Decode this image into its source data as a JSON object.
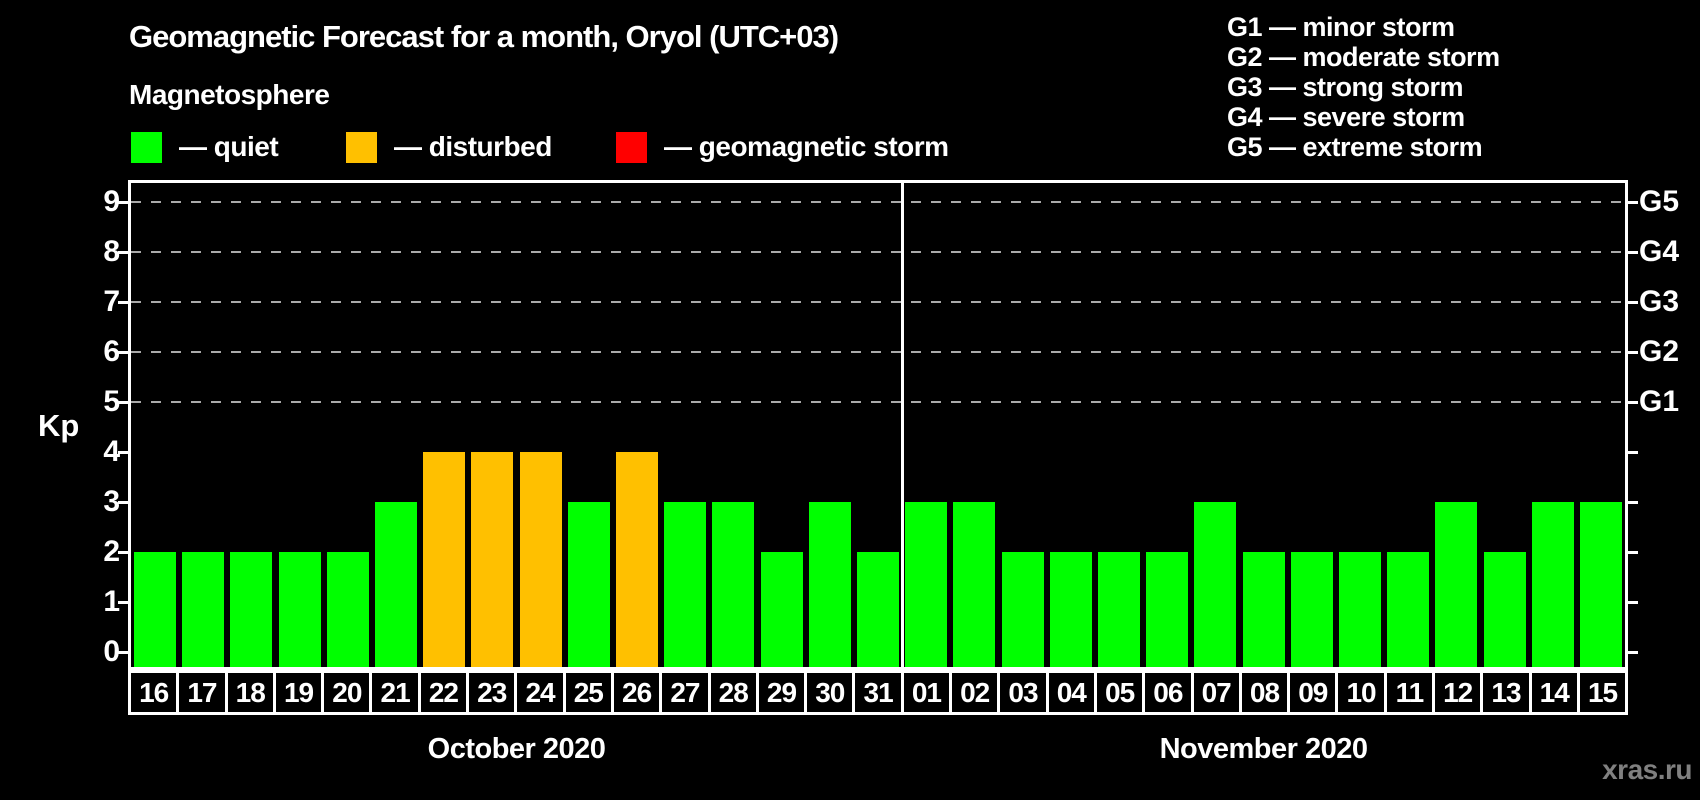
{
  "title": "Geomagnetic Forecast for a month, Oryol (UTC+03)",
  "subtitle": "Magnetosphere",
  "state_legend": [
    {
      "name": "quiet",
      "label": "— quiet",
      "color": "#00ff00"
    },
    {
      "name": "disturbed",
      "label": "— disturbed",
      "color": "#ffc000"
    },
    {
      "name": "storm",
      "label": "— geomagnetic storm",
      "color": "#ff0000"
    }
  ],
  "storm_scale_legend": [
    "G1 — minor storm",
    "G2 — moderate storm",
    "G3 — strong storm",
    "G4 — severe storm",
    "G5 — extreme storm"
  ],
  "watermark": "xras.ru",
  "colors": {
    "quiet": "#00ff00",
    "disturbed": "#ffc000",
    "storm": "#ff0000",
    "background": "#000000",
    "axis": "#ffffff",
    "grid": "#aaaaaa",
    "watermark_gray": "#808080"
  },
  "chart_data": {
    "type": "bar",
    "ylabel": "Kp",
    "ylim": [
      0,
      9
    ],
    "y_ticks": [
      0,
      1,
      2,
      3,
      4,
      5,
      6,
      7,
      8,
      9
    ],
    "gridlines_at": [
      5,
      6,
      7,
      8,
      9
    ],
    "grid": "dashed horizontal lines at storm levels G1–G5",
    "legend_position": "top",
    "right_axis_labels": [
      {
        "kp": 5,
        "label": "G1"
      },
      {
        "kp": 6,
        "label": "G2"
      },
      {
        "kp": 7,
        "label": "G3"
      },
      {
        "kp": 8,
        "label": "G4"
      },
      {
        "kp": 9,
        "label": "G5"
      }
    ],
    "months": [
      {
        "label": "October 2020",
        "days": [
          {
            "day": "16",
            "kp": 2,
            "state": "quiet"
          },
          {
            "day": "17",
            "kp": 2,
            "state": "quiet"
          },
          {
            "day": "18",
            "kp": 2,
            "state": "quiet"
          },
          {
            "day": "19",
            "kp": 2,
            "state": "quiet"
          },
          {
            "day": "20",
            "kp": 2,
            "state": "quiet"
          },
          {
            "day": "21",
            "kp": 3,
            "state": "quiet"
          },
          {
            "day": "22",
            "kp": 4,
            "state": "disturbed"
          },
          {
            "day": "23",
            "kp": 4,
            "state": "disturbed"
          },
          {
            "day": "24",
            "kp": 4,
            "state": "disturbed"
          },
          {
            "day": "25",
            "kp": 3,
            "state": "quiet"
          },
          {
            "day": "26",
            "kp": 4,
            "state": "disturbed"
          },
          {
            "day": "27",
            "kp": 3,
            "state": "quiet"
          },
          {
            "day": "28",
            "kp": 3,
            "state": "quiet"
          },
          {
            "day": "29",
            "kp": 2,
            "state": "quiet"
          },
          {
            "day": "30",
            "kp": 3,
            "state": "quiet"
          },
          {
            "day": "31",
            "kp": 2,
            "state": "quiet"
          }
        ]
      },
      {
        "label": "November 2020",
        "days": [
          {
            "day": "01",
            "kp": 3,
            "state": "quiet"
          },
          {
            "day": "02",
            "kp": 3,
            "state": "quiet"
          },
          {
            "day": "03",
            "kp": 2,
            "state": "quiet"
          },
          {
            "day": "04",
            "kp": 2,
            "state": "quiet"
          },
          {
            "day": "05",
            "kp": 2,
            "state": "quiet"
          },
          {
            "day": "06",
            "kp": 2,
            "state": "quiet"
          },
          {
            "day": "07",
            "kp": 3,
            "state": "quiet"
          },
          {
            "day": "08",
            "kp": 2,
            "state": "quiet"
          },
          {
            "day": "09",
            "kp": 2,
            "state": "quiet"
          },
          {
            "day": "10",
            "kp": 2,
            "state": "quiet"
          },
          {
            "day": "11",
            "kp": 2,
            "state": "quiet"
          },
          {
            "day": "12",
            "kp": 3,
            "state": "quiet"
          },
          {
            "day": "13",
            "kp": 2,
            "state": "quiet"
          },
          {
            "day": "14",
            "kp": 3,
            "state": "quiet"
          },
          {
            "day": "15",
            "kp": 3,
            "state": "quiet"
          }
        ]
      }
    ]
  }
}
